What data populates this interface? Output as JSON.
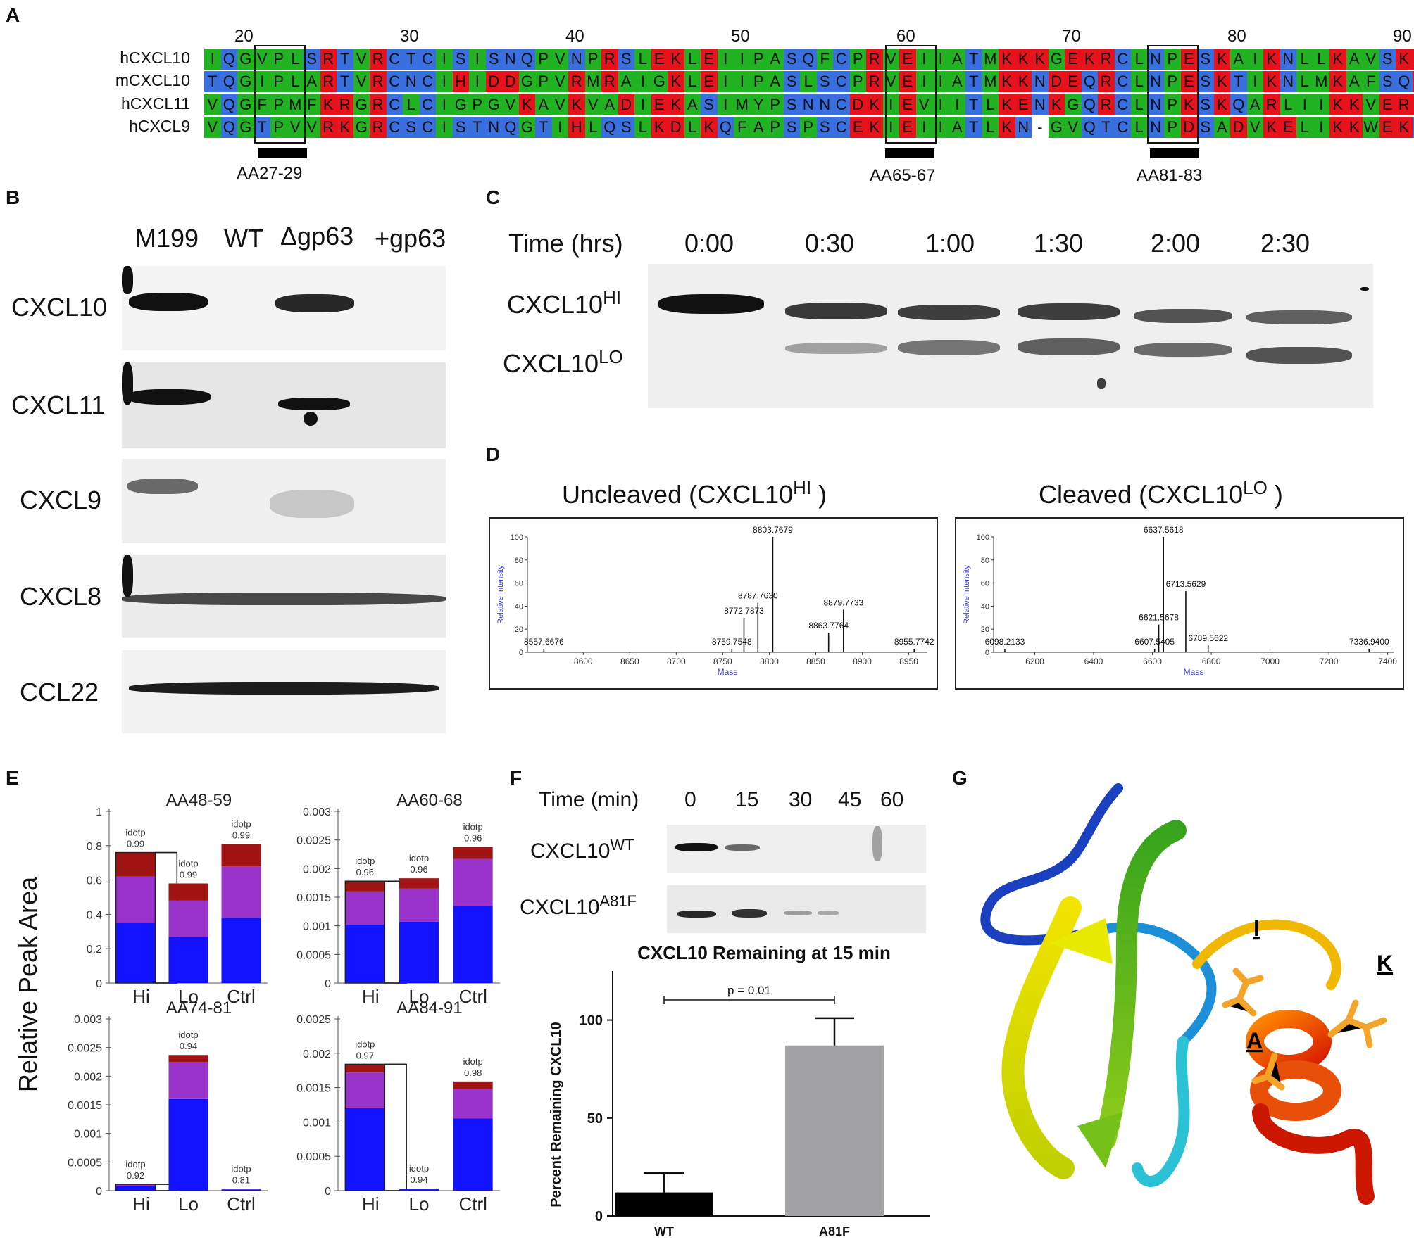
{
  "panel_labels": {
    "a": "A",
    "b": "B",
    "c": "C",
    "d": "D",
    "e": "E",
    "f": "F",
    "g": "G"
  },
  "panel_a": {
    "positions": [
      "20",
      "30",
      "40",
      "50",
      "60",
      "70",
      "80",
      "90"
    ],
    "sequences": [
      {
        "name": "hCXCL10",
        "seq": "IQGVPLSRTVRCTCISISNQPVNPRSLEKLEIIPASQFCPRVEIIATMKKKGEKRCLNPESKAIKNLLKAVSKERSK"
      },
      {
        "name": "mCXCL10",
        "seq": "TQGIPLARTVRCNCIHIDDGPVRMRAIGKLEIIPASLSCPRVEIIATMKKNDEQRCLNPESKTIKNLMKAFSQKRSK"
      },
      {
        "name": "hCXCL11",
        "seq": "VQGFPMFKRGRCLCIGPGVKAVKVADIEKASIMYPSNNCDKIEVIITLKENKGQRCLNPKSKQARLIIKKVERKNF-"
      },
      {
        "name": "hCXCL9",
        "seq": "VQGTPVVRKGRCSCISTNQGTIHLQSLKDLKQFAPSPSCEKIEIIATLKN-GVQTCLNPDSADVKELIKKWEKQVSQ"
      }
    ],
    "motif_labels": [
      "AA27-29",
      "AA65-67",
      "AA81-83"
    ]
  },
  "panel_b": {
    "columns": [
      "M199",
      "WT",
      "Δgp63",
      "+gp63"
    ],
    "rows": [
      "CXCL10",
      "CXCL11",
      "CXCL9",
      "CXCL8",
      "CCL22"
    ]
  },
  "panel_c": {
    "time_label": "Time (hrs)",
    "times": [
      "0:00",
      "0:30",
      "1:00",
      "1:30",
      "2:00",
      "2:30"
    ],
    "hi_label": "CXCL10",
    "hi_sup": "HI",
    "lo_label": "CXCL10",
    "lo_sup": "LO"
  },
  "panel_d": {
    "left_title": "Uncleaved (CXCL10",
    "left_sup": "HI",
    "left_close": " )",
    "right_title": "Cleaved (CXCL10",
    "right_sup": "LO",
    "right_close": " )",
    "ylabel": "Relative Intensity",
    "xlabel": "Mass",
    "left_peaks": [
      {
        "mass": 8557.6676,
        "label": "8557.6676",
        "rel": 3
      },
      {
        "mass": 8759.7548,
        "label": "8759.7548",
        "rel": 3
      },
      {
        "mass": 8772.7873,
        "label": "8772.7873",
        "rel": 30
      },
      {
        "mass": 8787.763,
        "label": "8787.7630",
        "rel": 43
      },
      {
        "mass": 8803.7679,
        "label": "8803.7679",
        "rel": 100
      },
      {
        "mass": 8863.7764,
        "label": "8863.7764",
        "rel": 17
      },
      {
        "mass": 8879.7733,
        "label": "8879.7733",
        "rel": 37
      },
      {
        "mass": 8955.7742,
        "label": "8955.7742",
        "rel": 3
      }
    ],
    "left_xticks": [
      "8600",
      "8650",
      "8700",
      "8750",
      "8800",
      "8850",
      "8900",
      "8950"
    ],
    "right_peaks": [
      {
        "mass": 6098.2133,
        "label": "6098.2133",
        "rel": 3
      },
      {
        "mass": 6607.5405,
        "label": "6607.5405",
        "rel": 3
      },
      {
        "mass": 6621.5678,
        "label": "6621.5678",
        "rel": 24
      },
      {
        "mass": 6637.5618,
        "label": "6637.5618",
        "rel": 100
      },
      {
        "mass": 6713.5629,
        "label": "6713.5629",
        "rel": 53
      },
      {
        "mass": 6789.5622,
        "label": "6789.5622",
        "rel": 6
      },
      {
        "mass": 7336.94,
        "label": "7336.9400",
        "rel": 3
      }
    ],
    "right_xticks": [
      "6200",
      "6400",
      "6600",
      "6800",
      "7000",
      "7200",
      "7400"
    ],
    "yticks": [
      "0",
      "20",
      "40",
      "60",
      "80",
      "100"
    ]
  },
  "panel_e": {
    "ylabel": "Relative Peak Area",
    "categories": [
      "Hi",
      "Lo",
      "Ctrl"
    ],
    "note_label": "idotp",
    "charts": [
      {
        "title": "AA48-59",
        "yticks": [
          "0",
          "0.2",
          "0.4",
          "0.6",
          "0.8",
          "1"
        ],
        "ymax": 1,
        "stacks": [
          [
            0.35,
            0.27,
            0.14
          ],
          [
            0.27,
            0.21,
            0.1
          ],
          [
            0.38,
            0.3,
            0.13
          ]
        ],
        "totals": [
          0.76,
          0.58,
          0.81
        ],
        "outline": 0,
        "idotp": [
          "0.99",
          "0.99",
          "0.99"
        ]
      },
      {
        "title": "AA60-68",
        "yticks": [
          "0",
          "0.0005",
          "0.001",
          "0.0015",
          "0.002",
          "0.0025",
          "0.003"
        ],
        "ymax": 0.003,
        "stacks": [
          [
            0.00102,
            0.00058,
            0.00018
          ],
          [
            0.00107,
            0.00058,
            0.00018
          ],
          [
            0.00135,
            0.00082,
            0.00021
          ]
        ],
        "totals": [
          0.00178,
          0.00183,
          0.00238
        ],
        "outline": 0,
        "idotp": [
          "0.96",
          "0.96",
          "0.96"
        ]
      },
      {
        "title": "AA74-81",
        "yticks": [
          "0",
          "0.0005",
          "0.001",
          "0.0015",
          "0.002",
          "0.0025",
          "0.003"
        ],
        "ymax": 0.003,
        "stacks": [
          [
            8e-05,
            2e-05,
            1e-05
          ],
          [
            0.0016,
            0.00065,
            0.00012
          ],
          [
            2e-05,
            1e-05,
            0.0
          ]
        ],
        "totals": [
          0.00011,
          0.00237,
          3e-05
        ],
        "outline": 0,
        "idotp": [
          "0.92",
          "0.94",
          "0.81"
        ]
      },
      {
        "title": "AA84-91",
        "yticks": [
          "0",
          "0.0005",
          "0.001",
          "0.0015",
          "0.002",
          "0.0025"
        ],
        "ymax": 0.0025,
        "stacks": [
          [
            0.0012,
            0.00052,
            0.00012
          ],
          [
            2e-05,
            1e-05,
            0.0
          ],
          [
            0.00105,
            0.00043,
            0.00011
          ]
        ],
        "totals": [
          0.00184,
          3e-05,
          0.00159
        ],
        "outline": 0,
        "idotp": [
          "0.97",
          "0.94",
          "0.98"
        ]
      }
    ]
  },
  "panel_f": {
    "time_label": "Time (min)",
    "times": [
      "0",
      "15",
      "30",
      "45",
      "60"
    ],
    "wt_label": "CXCL10",
    "wt_sup": "WT",
    "mut_label": "CXCL10",
    "mut_sup": "A81F",
    "chart_data": {
      "type": "bar",
      "title": "CXCL10 Remaining at 15 min",
      "categories": [
        "WT",
        "A81F"
      ],
      "values": [
        12,
        87
      ],
      "errors": [
        10,
        14
      ],
      "ylabel": "Percent Remaining CXCL10",
      "yticks": [
        "0",
        "50",
        "100"
      ],
      "ylim": [
        0,
        125
      ],
      "annotation": "p = 0.01",
      "colors": [
        "#000000",
        "#a3a3a6"
      ]
    }
  },
  "panel_g": {
    "residue_labels": [
      "I",
      "K",
      "A"
    ]
  },
  "colors": {
    "red": "#e8121c",
    "green": "#22b322",
    "blue": "#3a6fe0",
    "hist_blue": "#1212ff",
    "hist_purple": "#9933cc",
    "hist_red": "#a01414"
  }
}
